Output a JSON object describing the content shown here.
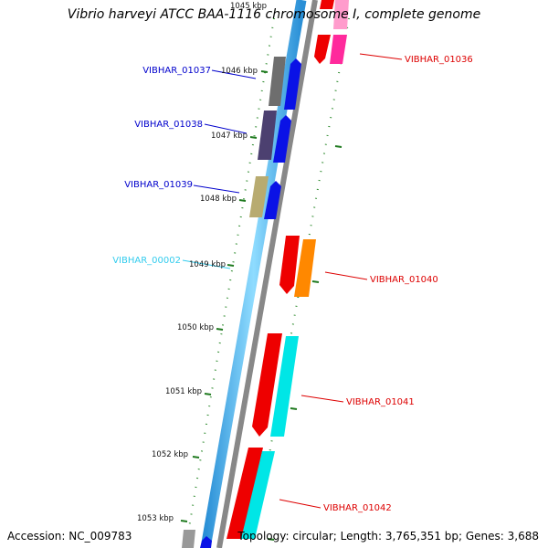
{
  "title": "Vibrio harveyi ATCC BAA-1116 chromosome I, complete genome",
  "accession": "Accession: NC_009783",
  "topology": "Topology: circular; Length: 3,765,351 bp; Genes: 3,688",
  "colors": {
    "track_light_blue": "#5ac8f5",
    "track_gray": "#8c8c8c",
    "tick_green": "#2e8b2e",
    "left_label": "#0000cc",
    "left_label_light": "#33ccee",
    "right_label": "#dd0000"
  },
  "ticks": [
    "1045 kbp",
    "1046 kbp",
    "1047 kbp",
    "1048 kbp",
    "1049 kbp",
    "1050 kbp",
    "1051 kbp",
    "1052 kbp",
    "1053 kbp"
  ],
  "genes_left": [
    {
      "label": "VIBHAR_01037",
      "color": "#0000cc"
    },
    {
      "label": "VIBHAR_01038",
      "color": "#0000cc"
    },
    {
      "label": "VIBHAR_01039",
      "color": "#0000cc"
    },
    {
      "label": "VIBHAR_00002",
      "color": "#33ccee"
    }
  ],
  "genes_right": [
    {
      "label": "VIBHAR_01036",
      "color": "#dd0000"
    },
    {
      "label": "VIBHAR_01040",
      "color": "#dd0000"
    },
    {
      "label": "VIBHAR_01041",
      "color": "#dd0000"
    },
    {
      "label": "VIBHAR_01042",
      "color": "#dd0000"
    }
  ]
}
